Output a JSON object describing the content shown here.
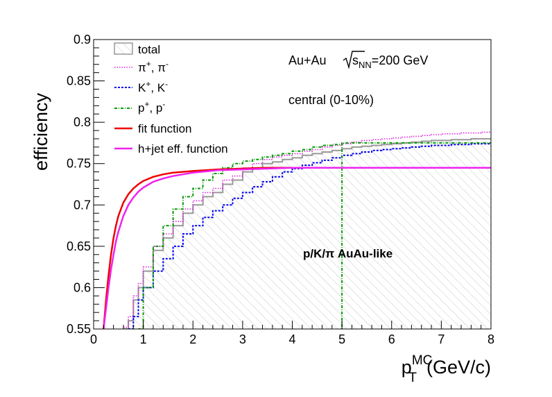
{
  "chart_data": {
    "type": "line",
    "xlabel_main": "p",
    "xlabel_sub": "T",
    "xlabel_sup": "MC",
    "xlabel_unit": "(GeV/c)",
    "ylabel": "efficiency",
    "xlim": [
      0,
      8
    ],
    "ylim": [
      0.55,
      0.9
    ],
    "x_ticks": [
      0,
      1,
      2,
      3,
      4,
      5,
      6,
      7,
      8
    ],
    "x_tick_labels": [
      "0",
      "1",
      "2",
      "3",
      "4",
      "5",
      "6",
      "7",
      "8"
    ],
    "y_ticks": [
      0.55,
      0.6,
      0.65,
      0.7,
      0.75,
      0.8,
      0.85,
      0.9
    ],
    "y_tick_labels": [
      "0.55",
      "0.6",
      "0.65",
      "0.7",
      "0.75",
      "0.8",
      "0.85",
      "0.9"
    ],
    "annotations": {
      "collision": "Au+Au",
      "energy_prefix": "s",
      "energy_sub": "NN",
      "energy_value": "=200 GeV",
      "centrality": "central (0-10%)",
      "mode": "p/K/π  AuAu-like"
    },
    "legend_placement": "top-left",
    "vline_x": 5,
    "series": [
      {
        "name": "total",
        "style": "hatched histogram",
        "color": "#999999",
        "x": [
          0.6,
          0.7,
          0.8,
          0.9,
          1.0,
          1.2,
          1.4,
          1.6,
          1.8,
          2.0,
          2.2,
          2.4,
          2.6,
          2.8,
          3.0,
          3.2,
          3.4,
          3.6,
          3.8,
          4.0,
          4.2,
          4.4,
          4.6,
          4.8,
          5.0,
          5.2,
          5.4,
          5.6,
          5.8,
          6.0,
          6.2,
          6.4,
          6.6,
          6.8,
          7.0,
          7.2,
          7.4,
          7.6,
          7.8,
          8.0
        ],
        "values": [
          0.55,
          0.56,
          0.585,
          0.6,
          0.62,
          0.645,
          0.66,
          0.675,
          0.69,
          0.7,
          0.71,
          0.715,
          0.725,
          0.73,
          0.74,
          0.745,
          0.75,
          0.752,
          0.755,
          0.757,
          0.76,
          0.762,
          0.764,
          0.766,
          0.768,
          0.77,
          0.771,
          0.772,
          0.773,
          0.774,
          0.775,
          0.776,
          0.777,
          0.778,
          0.778,
          0.779,
          0.779,
          0.78,
          0.78,
          0.78
        ]
      },
      {
        "name_main": "π",
        "name_sup1": "+",
        "name_sep": ", π",
        "name_sup2": "-",
        "style": "dotted step",
        "color": "#e020e0",
        "x": [
          0.6,
          0.7,
          0.8,
          0.9,
          1.0,
          1.2,
          1.4,
          1.6,
          1.8,
          2.0,
          2.2,
          2.4,
          2.6,
          2.8,
          3.0,
          3.2,
          3.4,
          3.6,
          3.8,
          4.0,
          4.2,
          4.4,
          4.6,
          4.8,
          5.0,
          5.2,
          5.4,
          5.6,
          5.8,
          6.0,
          6.2,
          6.4,
          6.6,
          6.8,
          7.0,
          7.2,
          7.4,
          7.6,
          7.8,
          8.0
        ],
        "values": [
          0.552,
          0.565,
          0.59,
          0.605,
          0.625,
          0.65,
          0.665,
          0.68,
          0.695,
          0.705,
          0.715,
          0.72,
          0.73,
          0.735,
          0.745,
          0.75,
          0.755,
          0.758,
          0.76,
          0.762,
          0.765,
          0.767,
          0.77,
          0.772,
          0.774,
          0.776,
          0.778,
          0.779,
          0.78,
          0.781,
          0.782,
          0.783,
          0.784,
          0.785,
          0.786,
          0.786,
          0.787,
          0.787,
          0.788,
          0.788
        ]
      },
      {
        "name_main": "K",
        "name_sup1": "+",
        "name_sep": ", K",
        "name_sup2": "-",
        "style": "dashed step",
        "color": "#0000ee",
        "x": [
          0.7,
          0.8,
          0.9,
          1.0,
          1.2,
          1.4,
          1.6,
          1.8,
          2.0,
          2.2,
          2.4,
          2.6,
          2.8,
          3.0,
          3.2,
          3.4,
          3.6,
          3.8,
          4.0,
          4.2,
          4.4,
          4.6,
          4.8,
          5.0,
          5.2,
          5.4,
          5.6,
          5.8,
          6.0,
          6.2,
          6.4,
          6.6,
          6.8,
          7.0,
          7.2,
          7.4,
          7.6,
          7.8,
          8.0
        ],
        "values": [
          0.55,
          0.565,
          0.585,
          0.6,
          0.62,
          0.635,
          0.65,
          0.665,
          0.675,
          0.685,
          0.693,
          0.7,
          0.708,
          0.715,
          0.722,
          0.728,
          0.734,
          0.74,
          0.744,
          0.748,
          0.751,
          0.754,
          0.757,
          0.76,
          0.762,
          0.764,
          0.766,
          0.767,
          0.768,
          0.769,
          0.77,
          0.771,
          0.772,
          0.772,
          0.773,
          0.773,
          0.774,
          0.774,
          0.775
        ]
      },
      {
        "name_main": "p",
        "name_sup1": "+",
        "name_sep": ", p",
        "name_sup2": "-",
        "style": "dash-dot step",
        "color": "#009900",
        "x": [
          0.9,
          1.0,
          1.2,
          1.4,
          1.6,
          1.8,
          2.0,
          2.2,
          2.4,
          2.6,
          2.8,
          3.0,
          3.2,
          3.4,
          3.6,
          3.8,
          4.0,
          4.2,
          4.4,
          4.6,
          4.8,
          5.0
        ],
        "values": [
          0.55,
          0.6,
          0.65,
          0.675,
          0.695,
          0.71,
          0.72,
          0.73,
          0.738,
          0.745,
          0.75,
          0.753,
          0.755,
          0.758,
          0.76,
          0.762,
          0.765,
          0.767,
          0.77,
          0.772,
          0.773,
          0.775
        ]
      },
      {
        "name": "fit function",
        "style": "solid curve",
        "color": "#ee0000",
        "x": [
          0.2,
          0.25,
          0.3,
          0.35,
          0.4,
          0.45,
          0.5,
          0.6,
          0.7,
          0.8,
          0.9,
          1.0,
          1.2,
          1.4,
          1.6,
          1.8,
          2.0,
          2.5,
          3.0,
          3.5,
          4.0,
          5.0,
          6.0,
          7.0,
          8.0
        ],
        "values": [
          0.55,
          0.585,
          0.615,
          0.64,
          0.66,
          0.675,
          0.687,
          0.703,
          0.713,
          0.72,
          0.725,
          0.729,
          0.734,
          0.737,
          0.739,
          0.74,
          0.741,
          0.743,
          0.744,
          0.745,
          0.745,
          0.745,
          0.745,
          0.745,
          0.745
        ]
      },
      {
        "name": "h+jet eff. function",
        "style": "solid curve",
        "color": "#ee22ee",
        "x": [
          0.2,
          0.25,
          0.3,
          0.35,
          0.4,
          0.45,
          0.5,
          0.6,
          0.7,
          0.8,
          0.9,
          1.0,
          1.2,
          1.4,
          1.6,
          1.8,
          2.0,
          2.5,
          3.0,
          3.5,
          4.0,
          5.0,
          6.0,
          7.0,
          8.0
        ],
        "values": [
          0.55,
          0.575,
          0.6,
          0.622,
          0.64,
          0.656,
          0.668,
          0.687,
          0.7,
          0.709,
          0.716,
          0.721,
          0.728,
          0.732,
          0.735,
          0.737,
          0.739,
          0.742,
          0.743,
          0.744,
          0.745,
          0.745,
          0.745,
          0.745,
          0.745
        ]
      }
    ]
  }
}
